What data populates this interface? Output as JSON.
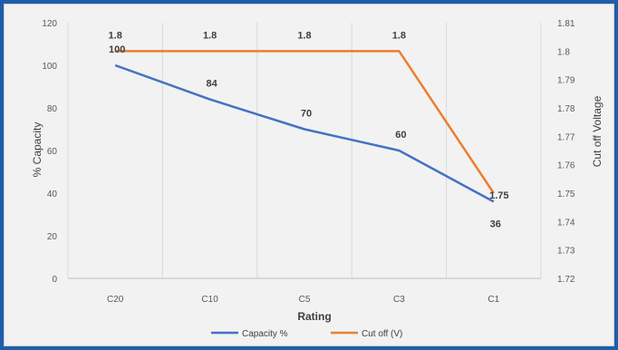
{
  "chart_data": {
    "type": "line",
    "title": "",
    "xlabel": "Rating",
    "ylabel": "% Capacity",
    "y2label": "Cut off Voltage",
    "categories": [
      "C20",
      "C10",
      "C5",
      "C3",
      "C1"
    ],
    "ylim": [
      0,
      120
    ],
    "y_ticks": [
      "0",
      "20",
      "40",
      "60",
      "80",
      "100",
      "120"
    ],
    "y2lim": [
      1.72,
      1.81
    ],
    "y2_ticks": [
      "1.72",
      "1.73",
      "1.74",
      "1.75",
      "1.76",
      "1.77",
      "1.78",
      "1.79",
      "1.8",
      "1.81"
    ],
    "grid": "vertical",
    "legend_position": "bottom",
    "series": [
      {
        "name": "Capacity %",
        "axis": "left",
        "color": "#4472c4",
        "values": [
          100,
          84,
          70,
          60,
          36
        ],
        "labels": [
          "100",
          "84",
          "70",
          "60",
          "36"
        ]
      },
      {
        "name": "Cut off (V)",
        "axis": "right",
        "color": "#ed7d31",
        "values": [
          1.8,
          1.8,
          1.8,
          1.8,
          1.75
        ],
        "labels": [
          "1.8",
          "1.8",
          "1.8",
          "1.8",
          "1.75"
        ]
      }
    ]
  }
}
